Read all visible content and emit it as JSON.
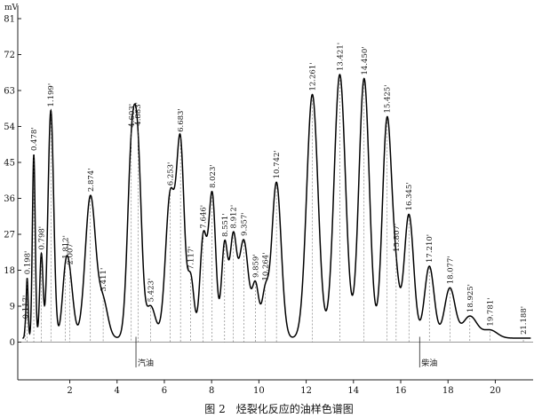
{
  "chart_data": {
    "type": "line",
    "caption": "图 2　烃裂化反应的油样色谱图",
    "ylabel": "mV",
    "xlim": [
      -0.2,
      21.6
    ],
    "ylim": [
      -1,
      83
    ],
    "x_ticks": [
      2,
      4,
      6,
      8,
      10,
      12,
      14,
      16,
      18,
      20
    ],
    "y_ticks": [
      0,
      9,
      18,
      27,
      36,
      45,
      54,
      63,
      72,
      81
    ],
    "x_tick_labels": [
      "2",
      "4",
      "6",
      "8",
      "10",
      "12",
      "14",
      "16",
      "18",
      "20"
    ],
    "y_tick_labels": [
      "0",
      "9",
      "18",
      "27",
      "36",
      "45",
      "54",
      "63",
      "72",
      "81"
    ],
    "baseline": 1,
    "peaks": [
      {
        "label": "0.117'",
        "x": 0.117,
        "y": 3.0,
        "w": 0.03
      },
      {
        "label": "0.198'",
        "x": 0.198,
        "y": 16.0,
        "w": 0.04
      },
      {
        "label": "0.478'",
        "x": 0.478,
        "y": 47.0,
        "w": 0.06
      },
      {
        "label": "0.798'",
        "x": 0.798,
        "y": 22.0,
        "w": 0.07
      },
      {
        "label": "1.199'",
        "x": 1.199,
        "y": 58.0,
        "w": 0.12
      },
      {
        "label": "1.812'",
        "x": 1.812,
        "y": 14.0,
        "w": 0.14
      },
      {
        "label": "2.007'",
        "x": 2.007,
        "y": 13.5,
        "w": 0.16
      },
      {
        "label": "2.874'",
        "x": 2.874,
        "y": 36.5,
        "w": 0.22
      },
      {
        "label": "3.411'",
        "x": 3.411,
        "y": 10.0,
        "w": 0.2
      },
      {
        "label": "4.603'",
        "x": 4.603,
        "y": 44.0,
        "w": 0.17
      },
      {
        "label": "4.883'",
        "x": 4.883,
        "y": 42.0,
        "w": 0.16
      },
      {
        "label": "5.423'",
        "x": 5.423,
        "y": 9.0,
        "w": 0.2
      },
      {
        "label": "6.253'",
        "x": 6.253,
        "y": 37.0,
        "w": 0.2
      },
      {
        "label": "6.683'",
        "x": 6.683,
        "y": 48.0,
        "w": 0.16
      },
      {
        "label": "7.117'",
        "x": 7.117,
        "y": 16.0,
        "w": 0.14
      },
      {
        "label": "7.646'",
        "x": 7.646,
        "y": 26.0,
        "w": 0.14
      },
      {
        "label": "8.023'",
        "x": 8.023,
        "y": 37.0,
        "w": 0.15
      },
      {
        "label": "8.551'",
        "x": 8.551,
        "y": 24.5,
        "w": 0.13
      },
      {
        "label": "8.912'",
        "x": 8.912,
        "y": 25.0,
        "w": 0.14
      },
      {
        "label": "9.357'",
        "x": 9.357,
        "y": 25.5,
        "w": 0.2
      },
      {
        "label": "9.859'",
        "x": 9.859,
        "y": 14.0,
        "w": 0.14
      },
      {
        "label": "10.264'",
        "x": 10.264,
        "y": 12.0,
        "w": 0.14
      },
      {
        "label": "10.742'",
        "x": 10.742,
        "y": 40.0,
        "w": 0.2
      },
      {
        "label": "12.261'",
        "x": 12.261,
        "y": 62.0,
        "w": 0.24
      },
      {
        "label": "13.421'",
        "x": 13.421,
        "y": 67.0,
        "w": 0.24
      },
      {
        "label": "14.450'",
        "x": 14.45,
        "y": 66.0,
        "w": 0.22
      },
      {
        "label": "15.425'",
        "x": 15.425,
        "y": 56.0,
        "w": 0.2
      },
      {
        "label": "15.807'",
        "x": 15.807,
        "y": 12.0,
        "w": 0.15
      },
      {
        "label": "16.345'",
        "x": 16.345,
        "y": 32.0,
        "w": 0.2
      },
      {
        "label": "17.210'",
        "x": 17.21,
        "y": 19.0,
        "w": 0.2
      },
      {
        "label": "18.077'",
        "x": 18.077,
        "y": 13.5,
        "w": 0.22
      },
      {
        "label": "18.925'",
        "x": 18.925,
        "y": 6.5,
        "w": 0.3
      },
      {
        "label": "19.781'",
        "x": 19.781,
        "y": 3.0,
        "w": 0.3
      },
      {
        "label": "21.188'",
        "x": 21.188,
        "y": 1.0,
        "w": 0.3
      }
    ],
    "regions": [
      {
        "label": "汽油",
        "x": 4.8
      },
      {
        "label": "柴油",
        "x": 16.8
      }
    ],
    "cut_markers": [
      4.8,
      16.8
    ]
  }
}
